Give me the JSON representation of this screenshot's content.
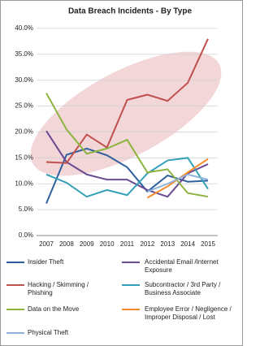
{
  "chart_data": {
    "type": "line",
    "title": "Data Breach Incidents - By Type",
    "categories": [
      "2007",
      "2008",
      "2009",
      "2010",
      "2011",
      "2012",
      "2013",
      "2014",
      "2015"
    ],
    "ylim": [
      0,
      40
    ],
    "yticks": [
      {
        "value": 0,
        "label": "0.0%"
      },
      {
        "value": 5,
        "label": "5.0%"
      },
      {
        "value": 10,
        "label": "10.0%"
      },
      {
        "value": 15,
        "label": "15.0%"
      },
      {
        "value": 20,
        "label": "20.0%"
      },
      {
        "value": 25,
        "label": "25.0%"
      },
      {
        "value": 30,
        "label": "30.0%"
      },
      {
        "value": 35,
        "label": "35.0%"
      },
      {
        "value": 40,
        "label": "40.0%"
      }
    ],
    "grid": true,
    "series": [
      {
        "name": "Insider Theft",
        "color": "#2e5f9e",
        "values": [
          6.2,
          15.6,
          16.8,
          15.5,
          13.2,
          8.5,
          11.6,
          10.4,
          10.6
        ]
      },
      {
        "name": "Accidental Email /Internet Exposure",
        "color": "#6b4c93",
        "values": [
          20.2,
          14.2,
          11.8,
          10.8,
          10.8,
          8.8,
          7.5,
          12.0,
          13.8
        ]
      },
      {
        "name": "Hacking / Skimming / Phishing",
        "color": "#c0504d",
        "values": [
          14.2,
          14.0,
          19.5,
          17.0,
          26.2,
          27.2,
          26.0,
          29.5,
          38.0
        ]
      },
      {
        "name": "Subcontractor / 3rd Party / Business Associate",
        "color": "#31a0b8",
        "values": [
          11.8,
          10.2,
          7.5,
          8.8,
          7.8,
          12.0,
          14.5,
          15.0,
          9.0
        ]
      },
      {
        "name": "Data on the Move",
        "color": "#8db43e",
        "values": [
          27.5,
          20.5,
          15.8,
          16.8,
          18.5,
          12.2,
          12.8,
          8.2,
          7.5
        ]
      },
      {
        "name": "Employee Error / Negligence / Improper Disposal / Lost",
        "color": "#f58a2a",
        "values": [
          null,
          null,
          null,
          null,
          null,
          7.3,
          9.5,
          12.2,
          14.8
        ]
      },
      {
        "name": "Physical Theft",
        "color": "#8fb2dc",
        "values": [
          null,
          null,
          null,
          null,
          null,
          8.5,
          10.0,
          11.8,
          10.8
        ]
      }
    ]
  }
}
